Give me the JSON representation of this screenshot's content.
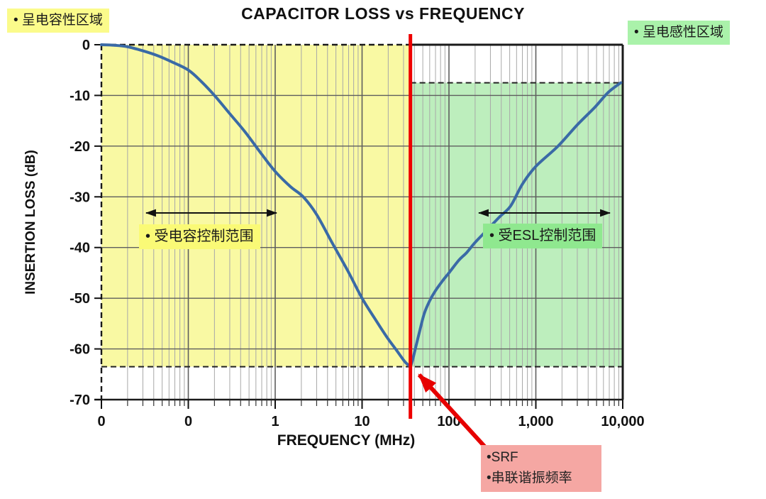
{
  "chart_data": {
    "type": "line",
    "title": "CAPACITOR LOSS vs FREQUENCY",
    "xlabel": "FREQUENCY (MHz)",
    "ylabel": "INSERTION LOSS (dB)",
    "x_scale": "log",
    "x_range_mhz": [
      0.01,
      10000
    ],
    "y_range_db": [
      -70,
      0
    ],
    "grid": true,
    "x_ticks": [
      {
        "label": "0",
        "mhz": 0.01
      },
      {
        "label": "0",
        "mhz": 0.1
      },
      {
        "label": "1",
        "mhz": 1
      },
      {
        "label": "10",
        "mhz": 10
      },
      {
        "label": "100",
        "mhz": 100
      },
      {
        "label": "1,000",
        "mhz": 1000
      },
      {
        "label": "10,000",
        "mhz": 10000
      }
    ],
    "y_ticks": [
      {
        "label": "0",
        "db": 0
      },
      {
        "label": "-10",
        "db": -10
      },
      {
        "label": "-20",
        "db": -20
      },
      {
        "label": "-30",
        "db": -30
      },
      {
        "label": "-40",
        "db": -40
      },
      {
        "label": "-50",
        "db": -50
      },
      {
        "label": "-60",
        "db": -60
      },
      {
        "label": "-70",
        "db": -70
      }
    ],
    "srf_mhz": 36,
    "min_loss_db": -63.5,
    "inductive_end_db": -7.5,
    "series": [
      {
        "name": "insertion-loss-capacitive-branch",
        "color": "#3a6aa6",
        "points_mhz_db": [
          [
            0.01,
            0
          ],
          [
            0.014,
            -0.1
          ],
          [
            0.02,
            -0.4
          ],
          [
            0.03,
            -1.2
          ],
          [
            0.045,
            -2.2
          ],
          [
            0.065,
            -3.4
          ],
          [
            0.1,
            -5
          ],
          [
            0.14,
            -7.2
          ],
          [
            0.2,
            -10
          ],
          [
            0.3,
            -13.6
          ],
          [
            0.45,
            -17.2
          ],
          [
            0.7,
            -21.6
          ],
          [
            1,
            -25
          ],
          [
            1.5,
            -28
          ],
          [
            2.1,
            -30
          ],
          [
            3,
            -33.5
          ],
          [
            4.5,
            -39
          ],
          [
            6.8,
            -44.5
          ],
          [
            10,
            -50
          ],
          [
            14,
            -54
          ],
          [
            19,
            -57.5
          ],
          [
            25,
            -60.3
          ],
          [
            31,
            -62.5
          ],
          [
            36,
            -63.5
          ]
        ]
      },
      {
        "name": "insertion-loss-inductive-branch",
        "color": "#3a6aa6",
        "points_mhz_db": [
          [
            36,
            -63.5
          ],
          [
            38,
            -62.3
          ],
          [
            41,
            -60
          ],
          [
            46,
            -56.5
          ],
          [
            52,
            -53
          ],
          [
            60,
            -50.5
          ],
          [
            70,
            -48.5
          ],
          [
            85,
            -46.5
          ],
          [
            100,
            -45
          ],
          [
            130,
            -42.5
          ],
          [
            160,
            -41
          ],
          [
            200,
            -39
          ],
          [
            280,
            -36.4
          ],
          [
            380,
            -34
          ],
          [
            513,
            -31.8
          ],
          [
            700,
            -27.5
          ],
          [
            1000,
            -24
          ],
          [
            1800,
            -20
          ],
          [
            3000,
            -15.8
          ],
          [
            4800,
            -12.3
          ],
          [
            6800,
            -9.4
          ],
          [
            9500,
            -7.5
          ]
        ]
      }
    ],
    "regions": [
      {
        "name": "capacitive-region",
        "mhz": [
          0.01,
          36
        ],
        "db": [
          0,
          -63.5
        ],
        "color": "rgba(248,248,140,0.8)"
      },
      {
        "name": "inductive-region",
        "mhz": [
          36,
          10000
        ],
        "db": [
          -7.5,
          -63.5
        ],
        "color": "rgba(163,231,163,0.72)"
      }
    ],
    "dashed_levels": [
      {
        "db": -63.5,
        "from_mhz": 0.01,
        "to_mhz": 10000
      },
      {
        "db": -7.5,
        "from_mhz": 36,
        "to_mhz": 10000
      }
    ]
  },
  "annotations": {
    "capacitive_area_label": "• 呈电容性区域",
    "inductive_area_label": "• 呈电感性区域",
    "capacitance_range_label": "• 受电容控制范围",
    "esl_range_label": "• 受ESL控制范围",
    "srf_line1": "•SRF",
    "srf_line2": "•串联谐振频率"
  },
  "colors": {
    "curve": "#3a6aa6",
    "srf_line": "#ee0000",
    "srf_arrow": "#e60000",
    "capacitive_fill": "#fafaa8",
    "inductive_fill": "#bcedbc",
    "capacitive_label_bg": "#fbfb8b",
    "inductive_label_bg": "#aaf2aa",
    "cap_range_label_bg": "#fafa76",
    "esl_range_label_bg": "#8fe88f",
    "srf_box_bg": "#f5a7a3",
    "grid_minor": "#a8a8a8",
    "grid_major": "#5e5e5e",
    "frame": "#1a1a1a"
  }
}
